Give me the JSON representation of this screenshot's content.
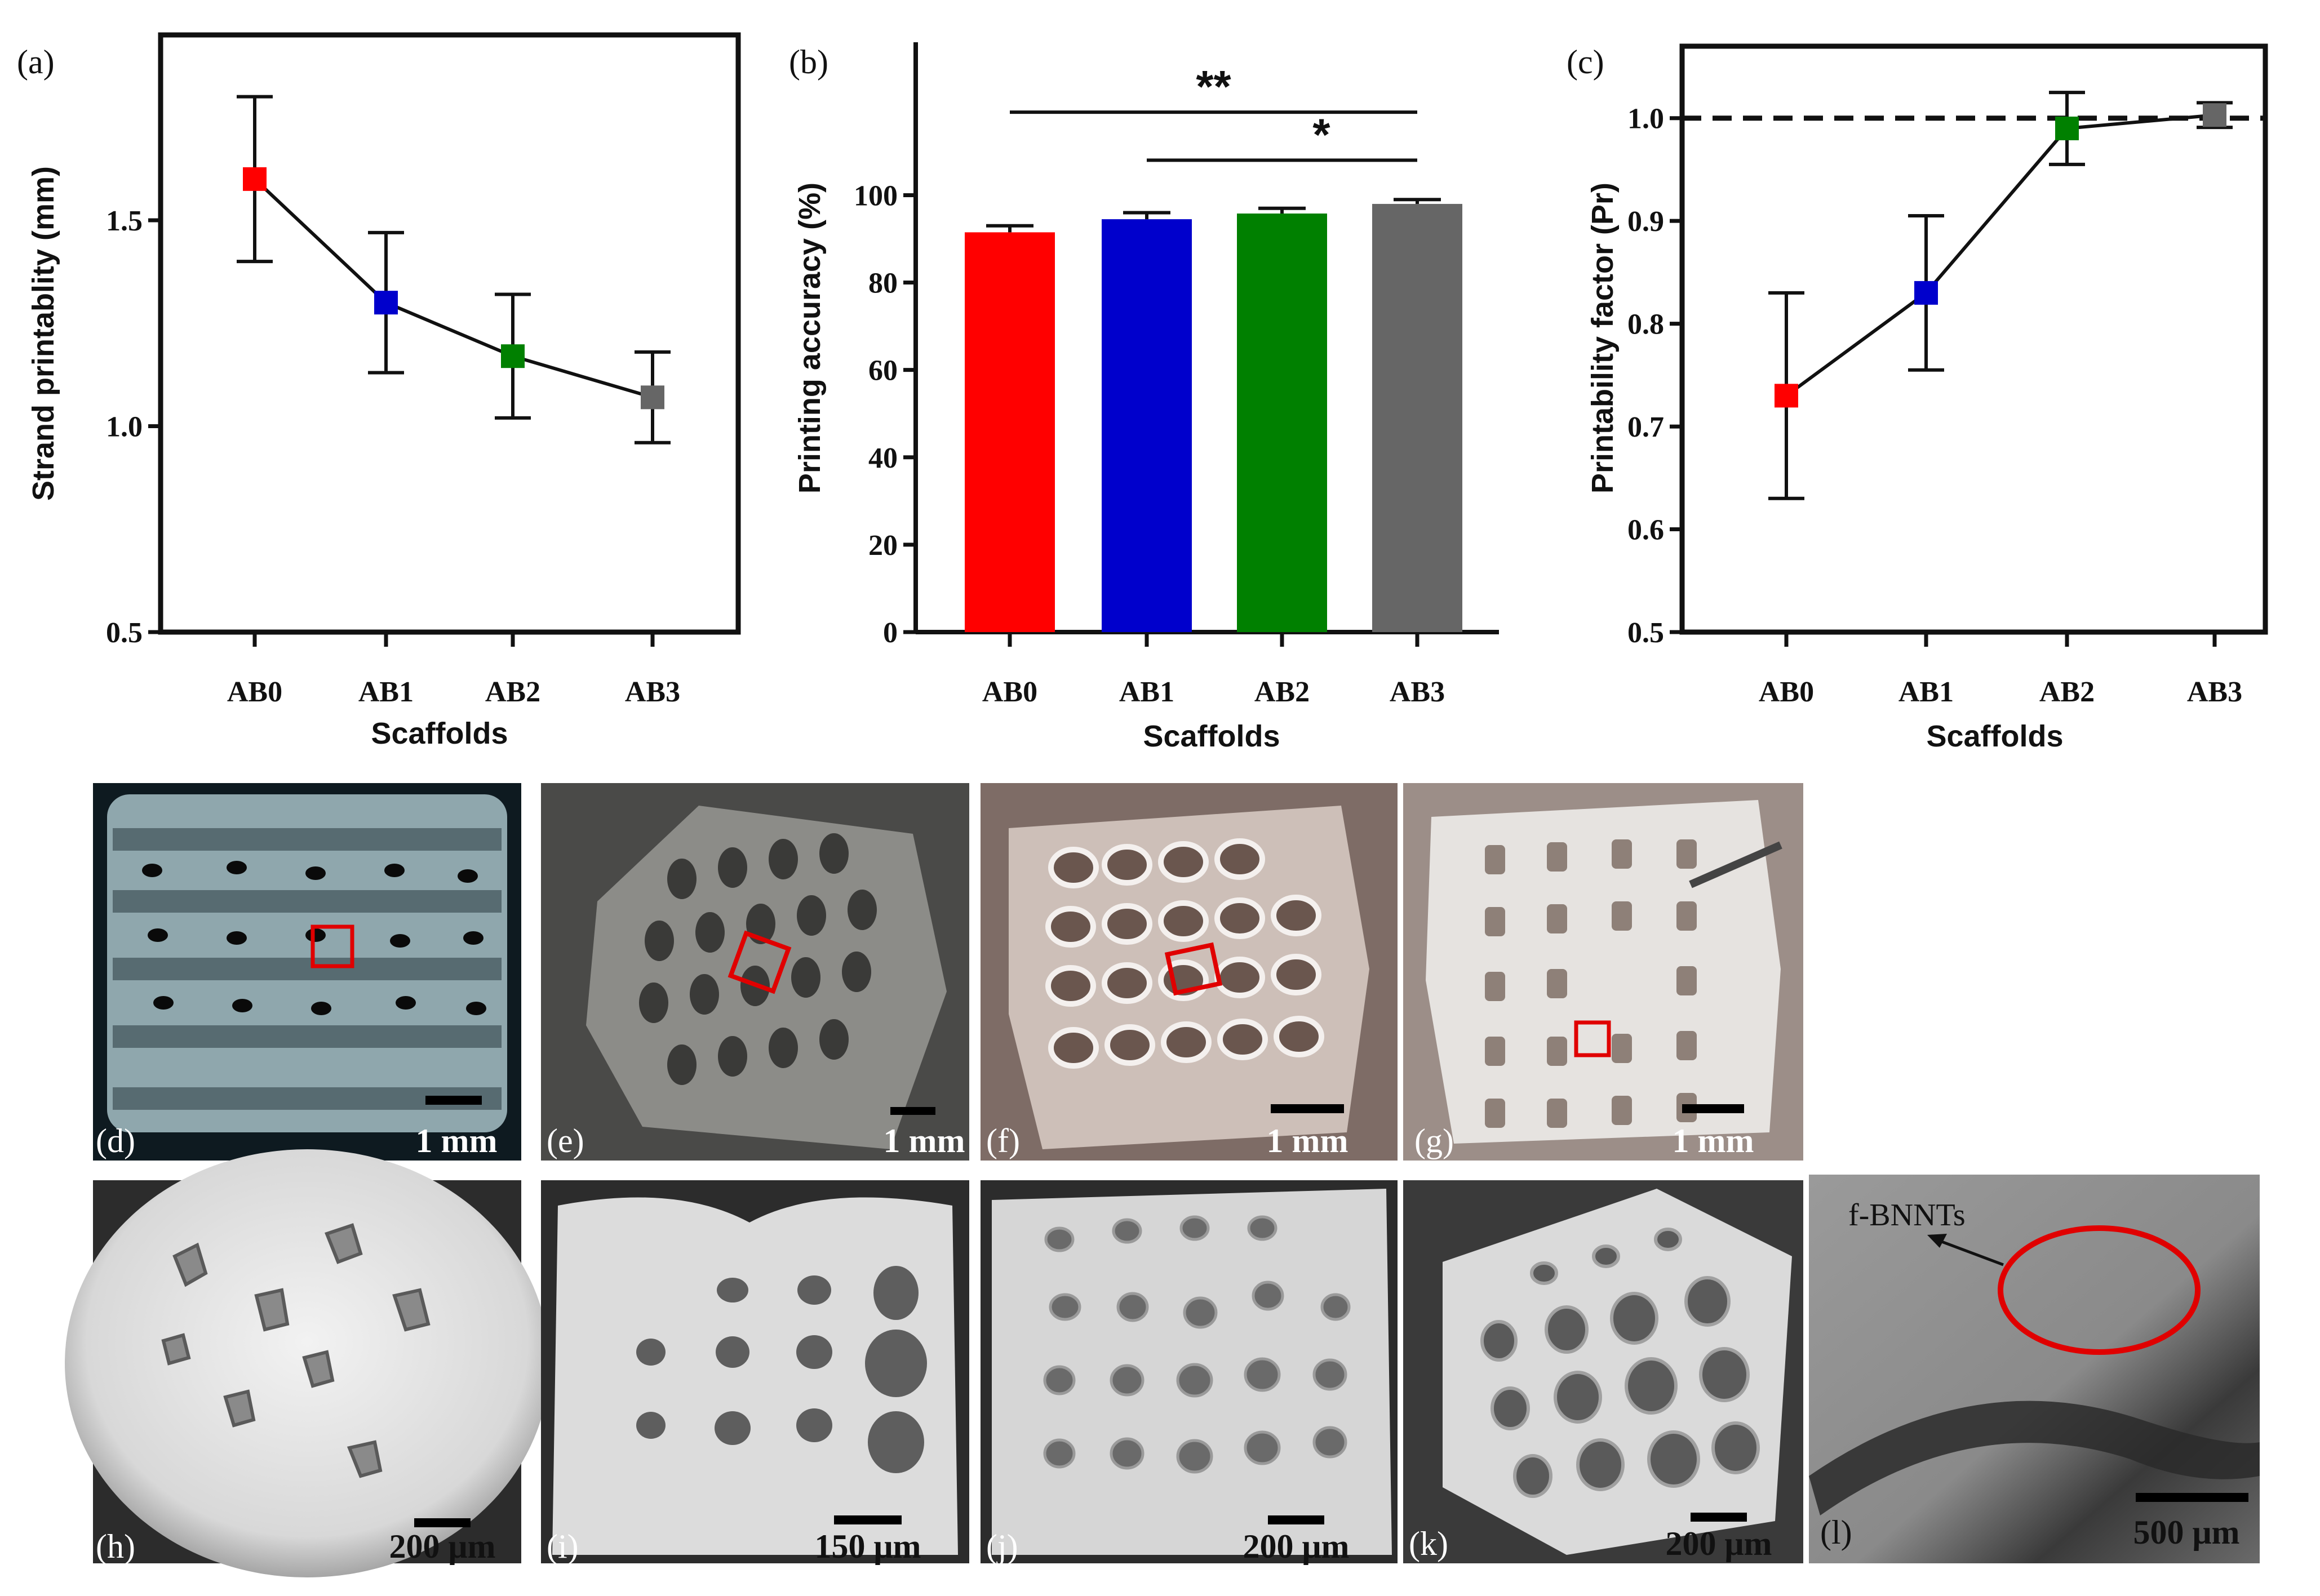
{
  "colors": {
    "AB0": "#ff0000",
    "AB1": "#0000cc",
    "AB2": "#008000",
    "AB3": "#666666",
    "scale_box": "#e00000"
  },
  "chart_data": [
    {
      "panel": "(a)",
      "type": "line",
      "categories": [
        "AB0",
        "AB1",
        "AB2",
        "AB3"
      ],
      "values": [
        1.6,
        1.3,
        1.17,
        1.07
      ],
      "errors": [
        0.2,
        0.17,
        0.15,
        0.11
      ],
      "xlabel": "Scaffolds",
      "ylabel": "Strand printablity (mm)",
      "ylim": [
        0.5,
        1.95
      ],
      "yticks": [
        0.5,
        1.0,
        1.5
      ],
      "ytick_labels": [
        "0.5",
        "1.0",
        "1.5"
      ]
    },
    {
      "panel": "(b)",
      "type": "bar",
      "categories": [
        "AB0",
        "AB1",
        "AB2",
        "AB3"
      ],
      "values": [
        91.5,
        94.5,
        95.8,
        98
      ],
      "errors": [
        1.5,
        1.5,
        1.2,
        1.0
      ],
      "xlabel": "Scaffolds",
      "ylabel": "Printing accuracy (%)",
      "ylim": [
        0,
        135
      ],
      "yticks": [
        0,
        20,
        40,
        60,
        80,
        100
      ],
      "ytick_labels": [
        "0",
        "20",
        "40",
        "60",
        "80",
        "100"
      ],
      "significance": [
        {
          "from": "AB0",
          "to": "AB3",
          "label": "**",
          "level": 119
        },
        {
          "from": "AB1",
          "to": "AB3",
          "label": "*",
          "level": 108
        }
      ]
    },
    {
      "panel": "(c)",
      "type": "line",
      "categories": [
        "AB0",
        "AB1",
        "AB2",
        "AB3"
      ],
      "values": [
        0.73,
        0.83,
        0.99,
        1.003
      ],
      "errors": [
        0.1,
        0.075,
        0.035,
        0.012
      ],
      "xlabel": "Scaffolds",
      "ylabel": "Printability factor (Pr)",
      "ylim": [
        0.5,
        1.07
      ],
      "yticks": [
        0.5,
        0.6,
        0.7,
        0.8,
        0.9,
        1.0
      ],
      "ytick_labels": [
        "0.5",
        "0.6",
        "0.7",
        "0.8",
        "0.9",
        "1.0"
      ],
      "reference_line": 1.0
    }
  ],
  "photos": [
    {
      "label": "(d)",
      "scale": "1 mm"
    },
    {
      "label": "(e)",
      "scale": "1 mm"
    },
    {
      "label": "(f)",
      "scale": "1 mm"
    },
    {
      "label": "(g)",
      "scale": "1 mm"
    }
  ],
  "sem": [
    {
      "label": "(h)",
      "scale": "200 μm"
    },
    {
      "label": "(i)",
      "scale": "150 μm"
    },
    {
      "label": "(j)",
      "scale": "200 μm"
    },
    {
      "label": "(k)",
      "scale": "200 μm"
    },
    {
      "label": "(l)",
      "scale": "500 μm",
      "annotation": "f-BNNTs"
    }
  ]
}
